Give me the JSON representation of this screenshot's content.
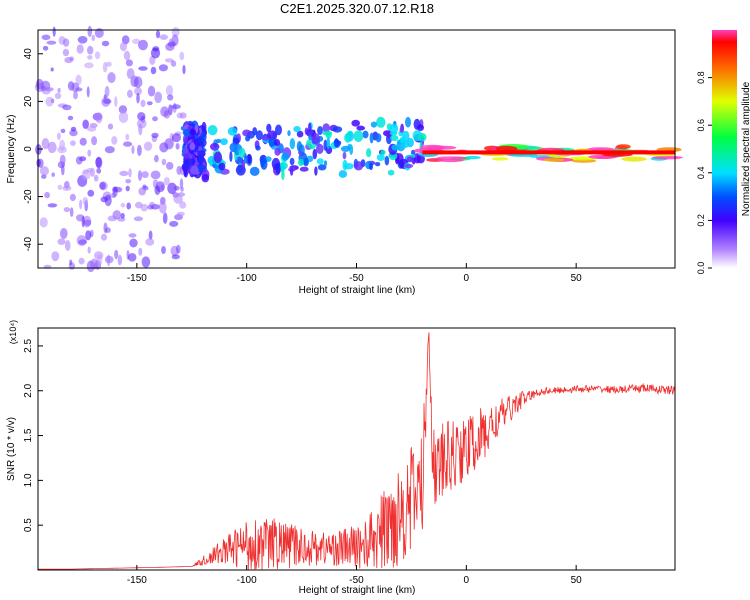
{
  "title": "C2E1.2025.320.07.12.R18",
  "chart_data": [
    {
      "type": "heatmap",
      "name": "spectrogram",
      "xlabel": "Height of straight line (km)",
      "ylabel": "Frequency (Hz)",
      "xlim": [
        -195,
        95
      ],
      "ylim": [
        -50,
        50
      ],
      "xticks": [
        -150,
        -100,
        -50,
        0,
        50
      ],
      "yticks": [
        -40,
        -20,
        0,
        20,
        40
      ],
      "colorbar": {
        "label": "Normalized spectral amplitude",
        "range": [
          0,
          1
        ],
        "ticks": [
          "0.0",
          "0.2",
          "0.4",
          "0.6",
          "0.8"
        ],
        "tick_values": [
          0.0,
          0.2,
          0.4,
          0.6,
          0.8
        ]
      },
      "bands": [
        {
          "x_start": -195,
          "x_end": -128,
          "f_min": -50,
          "f_max": 50,
          "amp": 0.15
        },
        {
          "x_start": -128,
          "x_end": -120,
          "f_min": -10,
          "f_max": 10,
          "amp": 0.25
        },
        {
          "x_start": -120,
          "x_end": -20,
          "f_min": -12,
          "f_max": 8,
          "amp": 0.35
        },
        {
          "x_start": -20,
          "x_end": 95,
          "f_min": -5,
          "f_max": 1,
          "amp": 0.9
        }
      ]
    },
    {
      "type": "line",
      "name": "snr",
      "xlabel": "Height of straight line (km)",
      "ylabel": "SNR (10 * v/v)",
      "multiplier": "(x10⁴)",
      "xlim": [
        -195,
        95
      ],
      "ylim": [
        0,
        2.7
      ],
      "xticks": [
        -150,
        -100,
        -50,
        0,
        50
      ],
      "yticks": [
        0.5,
        1.0,
        1.5,
        2.0,
        2.5
      ],
      "ytick_labels": [
        "0.5",
        "1.0",
        "1.5",
        "2.0",
        "2.5"
      ],
      "series": [
        {
          "name": "SNR",
          "color": "#f03030",
          "x": [
            -195,
            -180,
            -160,
            -140,
            -125,
            -120,
            -110,
            -100,
            -90,
            -80,
            -70,
            -60,
            -50,
            -45,
            -40,
            -35,
            -30,
            -25,
            -20,
            -17,
            -15,
            -10,
            -5,
            0,
            5,
            10,
            15,
            20,
            25,
            30,
            35,
            40,
            50,
            60,
            70,
            80,
            95
          ],
          "y": [
            0.01,
            0.01,
            0.02,
            0.03,
            0.04,
            0.1,
            0.22,
            0.28,
            0.3,
            0.27,
            0.25,
            0.24,
            0.26,
            0.3,
            0.38,
            0.5,
            0.65,
            0.8,
            0.95,
            2.7,
            1.1,
            1.2,
            1.3,
            1.35,
            1.45,
            1.55,
            1.7,
            1.8,
            1.9,
            1.95,
            2.0,
            2.0,
            2.02,
            2.02,
            2.01,
            2.03,
            2.0
          ],
          "noise": [
            0,
            0,
            0,
            0,
            0,
            0.05,
            0.15,
            0.3,
            0.3,
            0.25,
            0.2,
            0.2,
            0.25,
            0.3,
            0.4,
            0.55,
            0.6,
            0.6,
            0.6,
            0.2,
            0.5,
            0.45,
            0.4,
            0.35,
            0.35,
            0.3,
            0.2,
            0.15,
            0.1,
            0.05,
            0.04,
            0.04,
            0.04,
            0.04,
            0.04,
            0.05,
            0.05
          ]
        }
      ]
    }
  ]
}
